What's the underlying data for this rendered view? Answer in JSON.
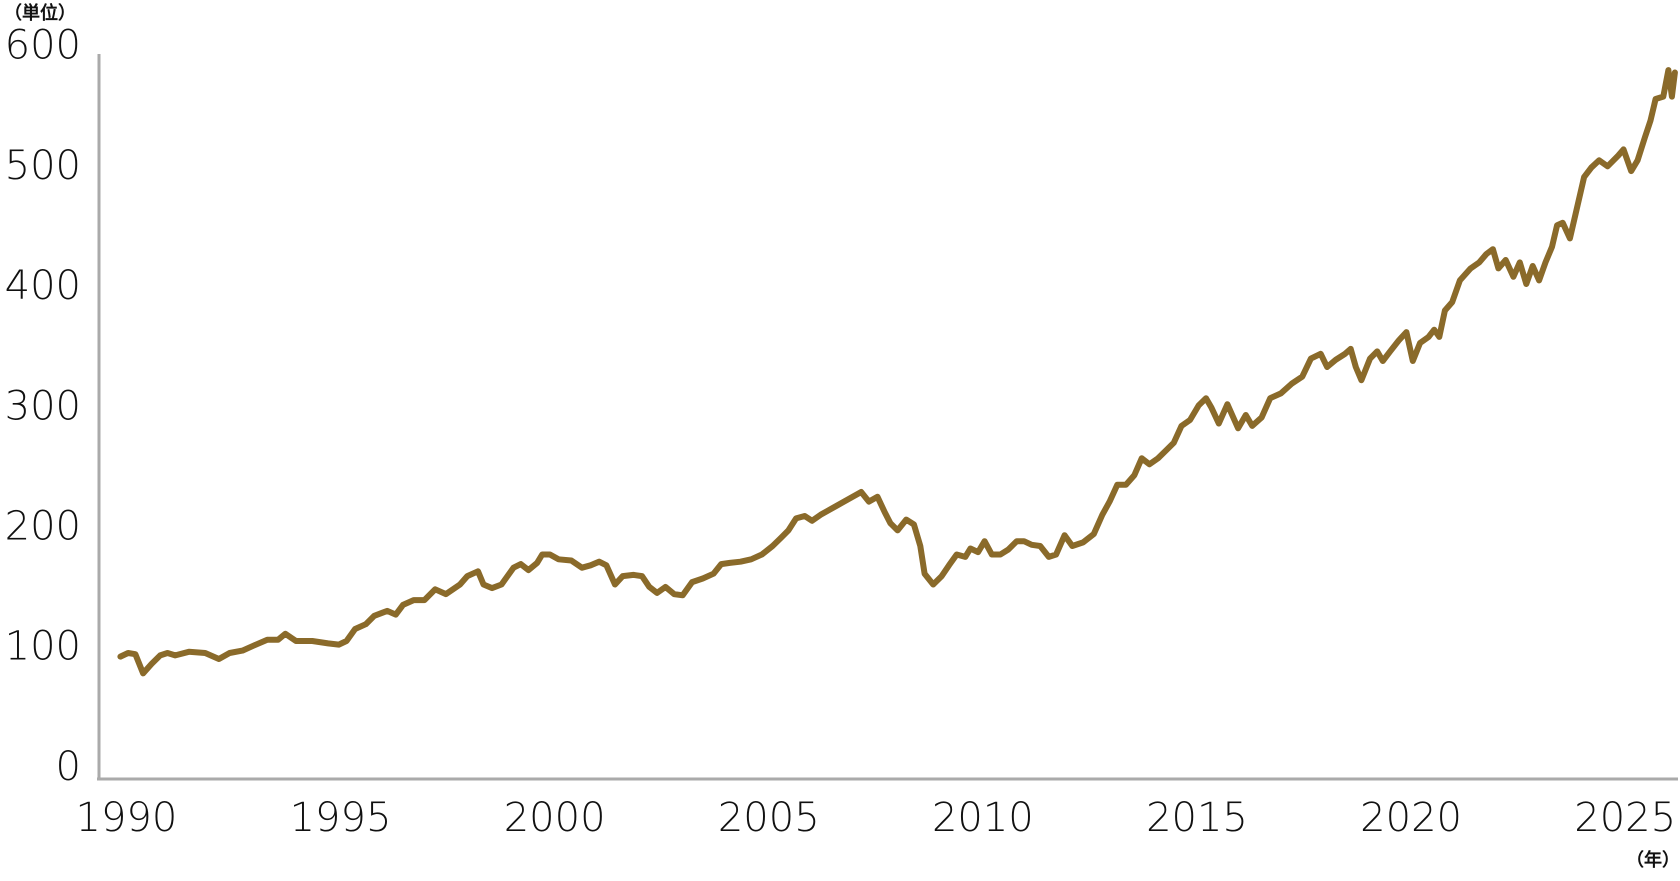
{
  "chart_data": {
    "type": "line",
    "y_label": "（単位）",
    "x_label": "（年）",
    "x": [
      1990.0,
      1990.18,
      1990.35,
      1990.53,
      1990.73,
      1990.93,
      1991.1,
      1991.28,
      1991.6,
      1991.98,
      1992.3,
      1992.55,
      1992.85,
      1993.1,
      1993.43,
      1993.68,
      1993.85,
      1994.1,
      1994.48,
      1994.85,
      1995.1,
      1995.28,
      1995.48,
      1995.73,
      1995.93,
      1996.23,
      1996.43,
      1996.6,
      1996.85,
      1997.1,
      1997.35,
      1997.6,
      1997.93,
      1998.1,
      1998.35,
      1998.48,
      1998.68,
      1998.9,
      1999.18,
      1999.35,
      1999.53,
      1999.73,
      1999.85,
      2000.03,
      2000.23,
      2000.53,
      2000.78,
      2000.98,
      2001.18,
      2001.35,
      2001.55,
      2001.73,
      2001.98,
      2002.18,
      2002.35,
      2002.53,
      2002.73,
      2002.93,
      2003.13,
      2003.35,
      2003.6,
      2003.85,
      2004.03,
      2004.23,
      2004.48,
      2004.73,
      2004.98,
      2005.23,
      2005.43,
      2005.6,
      2005.78,
      2005.98,
      2006.15,
      2006.35,
      2006.6,
      2006.85,
      2007.1,
      2007.3,
      2007.48,
      2007.68,
      2007.85,
      2007.98,
      2008.15,
      2008.35,
      2008.53,
      2008.68,
      2008.78,
      2008.98,
      2009.18,
      2009.35,
      2009.53,
      2009.73,
      2009.85,
      2010.03,
      2010.18,
      2010.35,
      2010.55,
      2010.73,
      2010.93,
      2011.1,
      2011.28,
      2011.48,
      2011.68,
      2011.85,
      2012.05,
      2012.23,
      2012.48,
      2012.73,
      2012.93,
      2013.1,
      2013.28,
      2013.48,
      2013.68,
      2013.85,
      2014.03,
      2014.23,
      2014.43,
      2014.6,
      2014.78,
      2014.98,
      2015.18,
      2015.35,
      2015.48,
      2015.65,
      2015.85,
      2016.1,
      2016.28,
      2016.43,
      2016.65,
      2016.85,
      2017.1,
      2017.35,
      2017.6,
      2017.8,
      2018.03,
      2018.18,
      2018.38,
      2018.6,
      2018.73,
      2018.85,
      2018.98,
      2019.18,
      2019.35,
      2019.48,
      2019.65,
      2019.85,
      2020.03,
      2020.18,
      2020.35,
      2020.55,
      2020.68,
      2020.8,
      2020.93,
      2021.1,
      2021.28,
      2021.53,
      2021.73,
      2021.9,
      2022.05,
      2022.18,
      2022.35,
      2022.53,
      2022.68,
      2022.83,
      2022.98,
      2023.13,
      2023.28,
      2023.43,
      2023.55,
      2023.68,
      2023.85,
      2023.98,
      2024.18,
      2024.35,
      2024.53,
      2024.73,
      2024.98,
      2025.1,
      2025.28,
      2025.43,
      2025.6,
      2025.73,
      2025.85,
      2026.03,
      2026.15,
      2026.23,
      2026.3
    ],
    "values": [
      100,
      103,
      102,
      86,
      94,
      101,
      103,
      101,
      104,
      103,
      98,
      103,
      105,
      109,
      114,
      114,
      119,
      113,
      113,
      111,
      110,
      113,
      123,
      127,
      134,
      138,
      135,
      143,
      147,
      147,
      156,
      152,
      160,
      167,
      171,
      160,
      157,
      160,
      174,
      177,
      172,
      178,
      185,
      185,
      181,
      180,
      174,
      176,
      179,
      176,
      160,
      167,
      168,
      167,
      158,
      153,
      158,
      152,
      151,
      162,
      165,
      169,
      177,
      178,
      179,
      181,
      185,
      192,
      199,
      205,
      215,
      217,
      213,
      218,
      223,
      228,
      233,
      237,
      229,
      233,
      220,
      211,
      205,
      214,
      210,
      192,
      169,
      160,
      167,
      176,
      185,
      183,
      190,
      187,
      196,
      185,
      185,
      189,
      196,
      196,
      193,
      192,
      183,
      185,
      201,
      192,
      195,
      202,
      218,
      229,
      243,
      243,
      251,
      265,
      260,
      265,
      272,
      278,
      292,
      297,
      309,
      315,
      307,
      294,
      310,
      290,
      301,
      292,
      299,
      315,
      319,
      327,
      333,
      348,
      352,
      341,
      347,
      352,
      356,
      341,
      330,
      348,
      354,
      346,
      354,
      363,
      370,
      346,
      361,
      366,
      372,
      366,
      388,
      395,
      413,
      423,
      428,
      435,
      439,
      423,
      430,
      416,
      428,
      410,
      425,
      413,
      428,
      441,
      459,
      461,
      448,
      468,
      499,
      507,
      513,
      508,
      517,
      522,
      504,
      513,
      532,
      546,
      564,
      566,
      588,
      566,
      586
    ],
    "color": "#8a6a2a",
    "xlim": [
      1989.5,
      2026.35
    ],
    "ylim": [
      0,
      600
    ],
    "xticks": [
      1990,
      1995,
      2000,
      2005,
      2010,
      2015,
      2020,
      2025
    ],
    "yticks": [
      0,
      100,
      200,
      300,
      400,
      500,
      600
    ]
  }
}
